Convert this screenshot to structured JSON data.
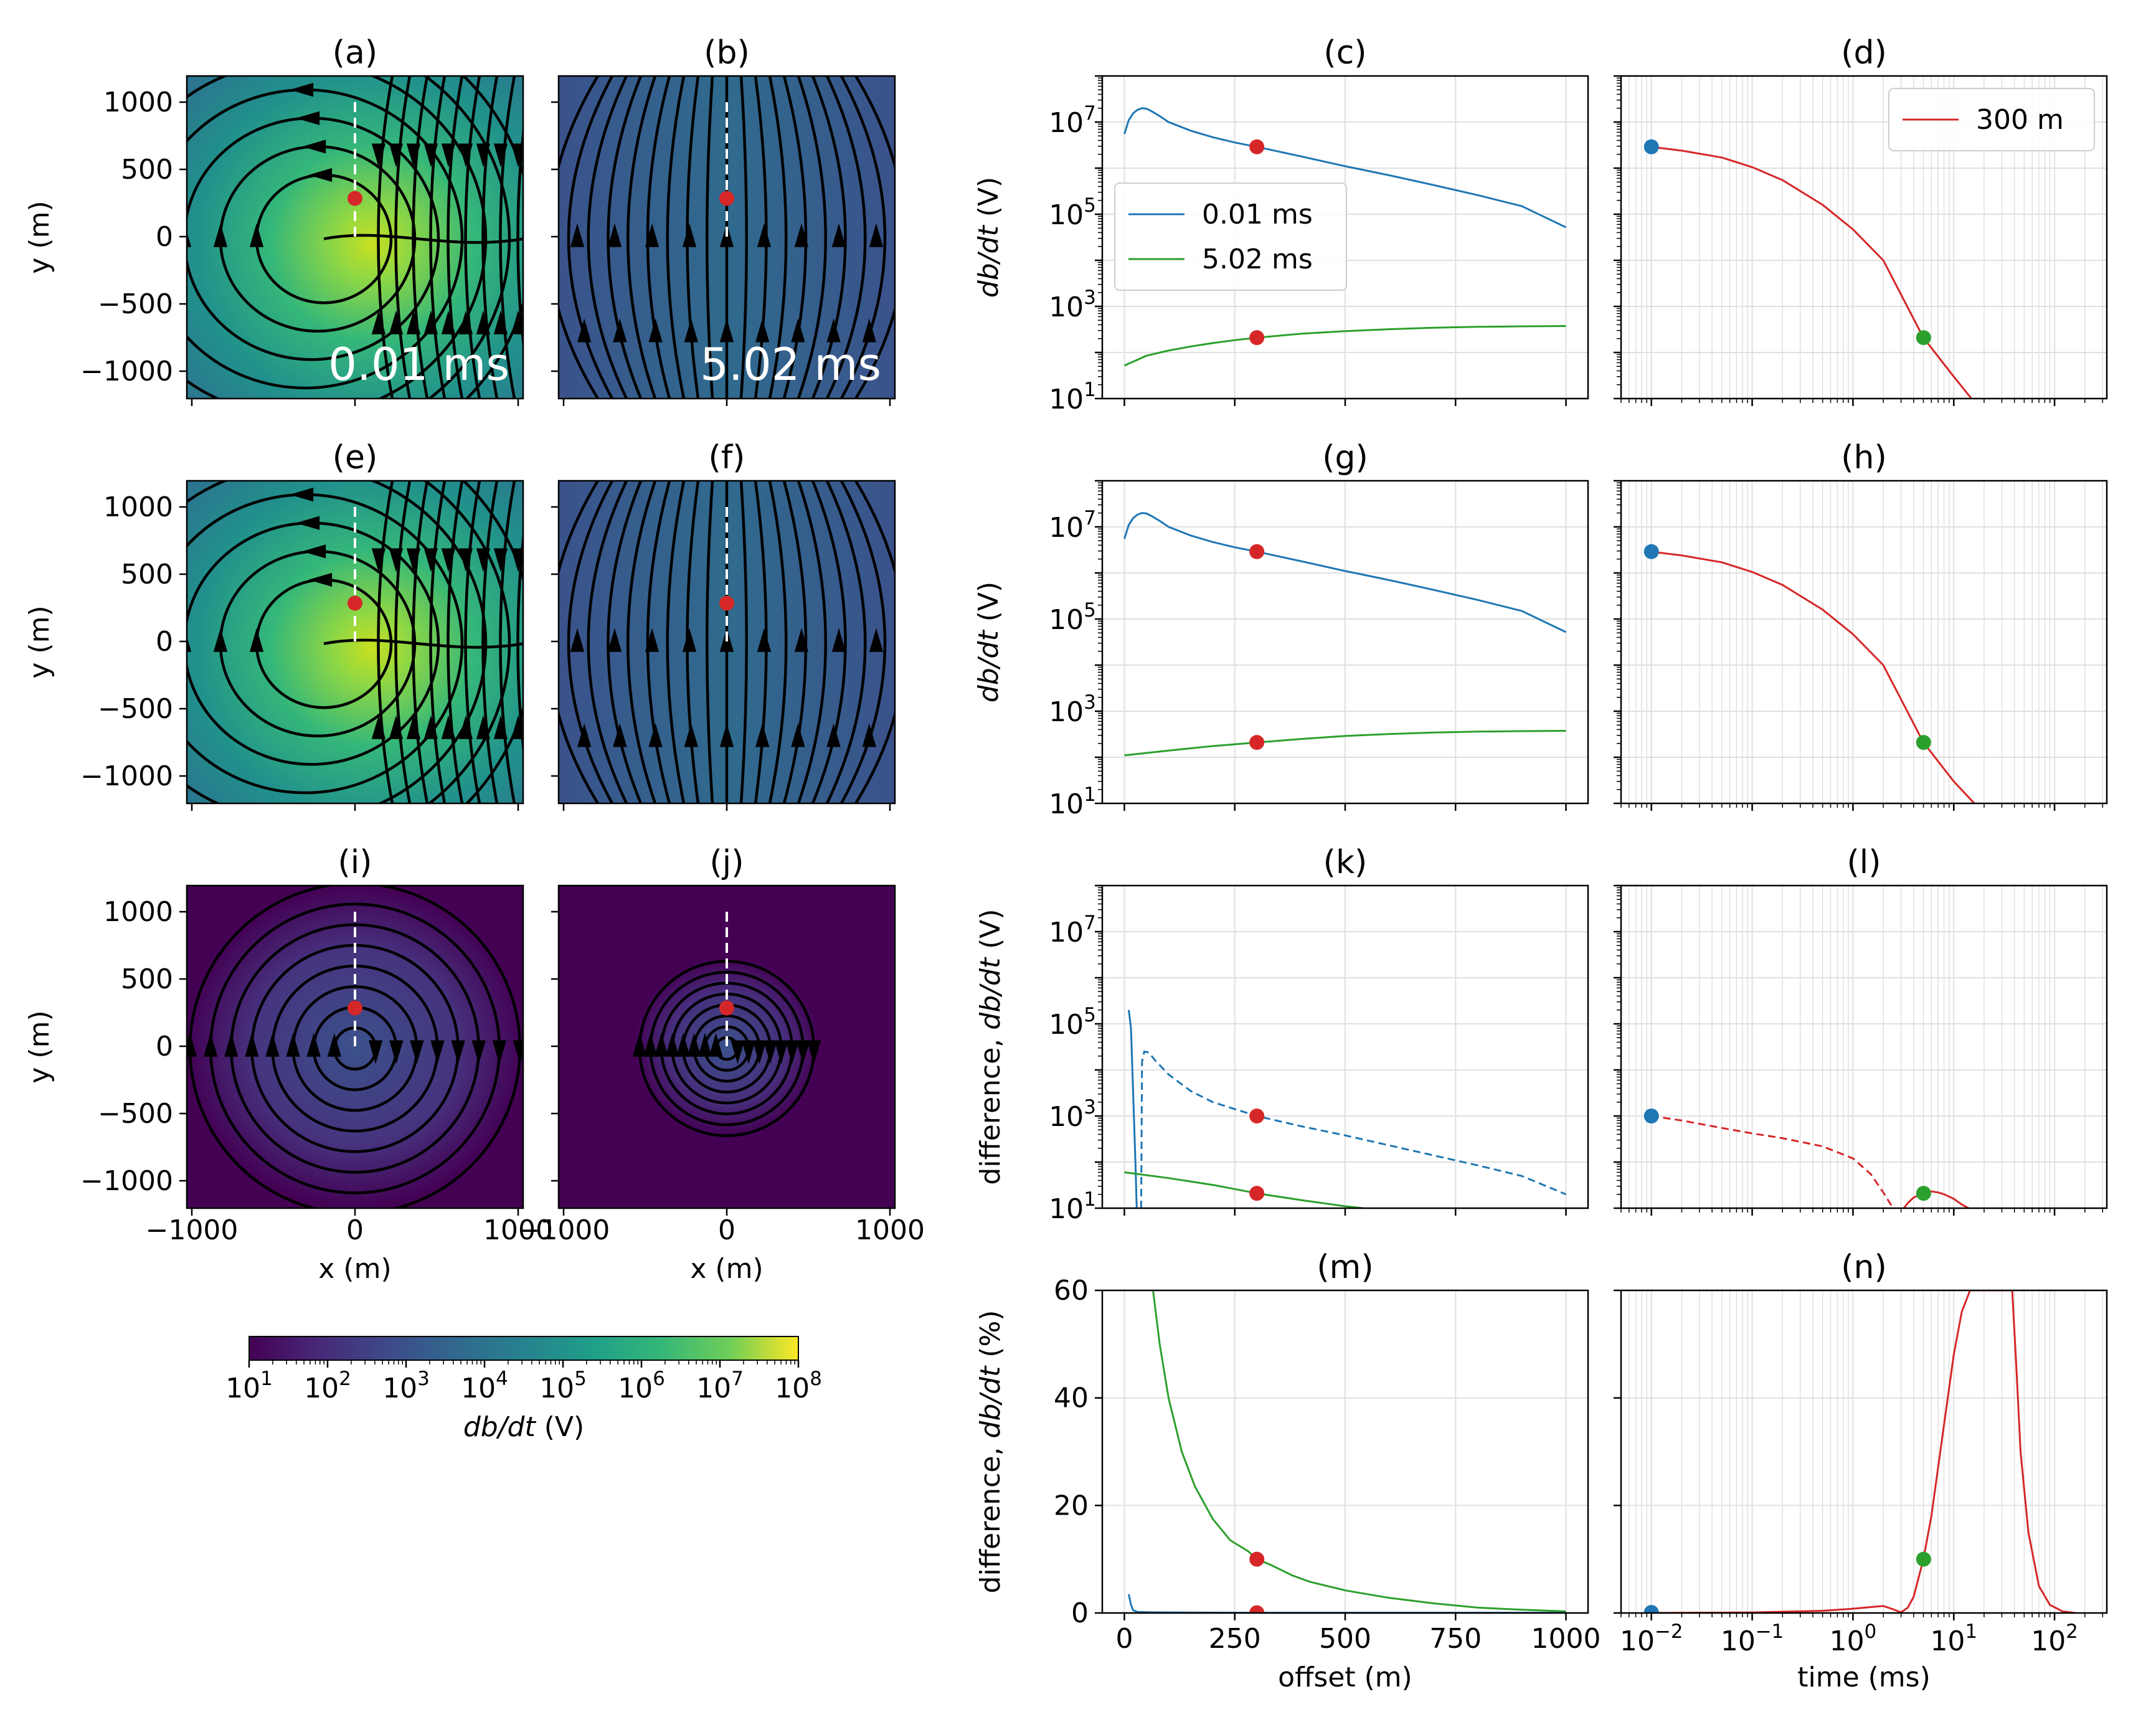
{
  "figure": {
    "panel_titles": {
      "a": "(a)",
      "b": "(b)",
      "c": "(c)",
      "d": "(d)",
      "e": "(e)",
      "f": "(f)",
      "g": "(g)",
      "h": "(h)",
      "i": "(i)",
      "j": "(j)",
      "k": "(k)",
      "l": "(l)",
      "m": "(m)",
      "n": "(n)"
    },
    "map_labels": {
      "ylabel": "y (m)",
      "xlabel": "x (m)",
      "time_a": "0.01 ms",
      "time_b": "5.02 ms"
    },
    "map_ticks": {
      "x": [
        "−1000",
        "0",
        "1000"
      ],
      "y": [
        "1000",
        "500",
        "0",
        "−500",
        "−1000"
      ]
    },
    "colorbar": {
      "label_italic": "db/dt",
      "label_unit": " (V)",
      "ticks_base": "10",
      "ticks_exp": [
        "1",
        "2",
        "3",
        "4",
        "5",
        "6",
        "7",
        "8"
      ],
      "colormap": "viridis"
    },
    "colors": {
      "blue": "#1f77b4",
      "green": "#2ca02c",
      "red": "#d62728",
      "grid": "#e0e0e0"
    }
  },
  "chart_data": [
    {
      "panel": "c",
      "type": "line",
      "xlabel": "",
      "ylabel_italic": "db/dt",
      "ylabel_unit": " (V)",
      "xlim": [
        -50,
        1050
      ],
      "ylim": [
        10,
        100000000
      ],
      "yscale": "log",
      "yticks": [
        "1",
        "3",
        "5",
        "7"
      ],
      "legend": {
        "position": "center-left",
        "entries": [
          "0.01 ms",
          "5.02 ms"
        ]
      },
      "series": [
        {
          "name": "0.01 ms",
          "color": "blue",
          "x": [
            0,
            10,
            20,
            30,
            40,
            50,
            60,
            80,
            100,
            150,
            200,
            250,
            300,
            400,
            500,
            600,
            700,
            800,
            900,
            1000
          ],
          "y": [
            5500000,
            11000000,
            15500000,
            18500000,
            20000000,
            19500000,
            17500000,
            13500000,
            10000000,
            6500000,
            4700000,
            3600000,
            2900000,
            1800000,
            1100000,
            700000,
            430000,
            260000,
            150000,
            52000
          ]
        },
        {
          "name": "5.02 ms",
          "color": "green",
          "x": [
            0,
            50,
            100,
            150,
            200,
            250,
            300,
            400,
            500,
            600,
            700,
            800,
            900,
            1000
          ],
          "y": [
            52,
            85,
            110,
            135,
            160,
            185,
            210,
            255,
            290,
            320,
            345,
            360,
            370,
            375
          ]
        }
      ],
      "markers": [
        {
          "x": 300,
          "y": 2900000,
          "color": "red"
        },
        {
          "x": 300,
          "y": 210,
          "color": "red"
        }
      ]
    },
    {
      "panel": "d",
      "type": "line",
      "xscale": "log",
      "yscale": "log",
      "xlim": [
        0.005,
        330
      ],
      "ylim": [
        10,
        100000000
      ],
      "legend": {
        "position": "top-right",
        "entries": [
          "300 m"
        ]
      },
      "series": [
        {
          "name": "300 m",
          "color": "red",
          "x": [
            0.01,
            0.02,
            0.05,
            0.1,
            0.2,
            0.5,
            1,
            2,
            5,
            10,
            15
          ],
          "y": [
            2900000,
            2400000,
            1700000,
            1050000,
            550000,
            160000,
            47000,
            10000,
            210,
            30,
            10
          ]
        }
      ],
      "markers": [
        {
          "x": 0.01,
          "y": 2900000,
          "color": "blue"
        },
        {
          "x": 5.02,
          "y": 210,
          "color": "green"
        }
      ]
    },
    {
      "panel": "g",
      "type": "line",
      "xlabel": "",
      "ylabel_italic": "db/dt",
      "ylabel_unit": " (V)",
      "xlim": [
        -50,
        1050
      ],
      "ylim": [
        10,
        100000000
      ],
      "yscale": "log",
      "yticks": [
        "1",
        "3",
        "5",
        "7"
      ],
      "series": [
        {
          "color": "blue",
          "x": [
            0,
            10,
            20,
            30,
            40,
            50,
            60,
            80,
            100,
            150,
            200,
            250,
            300,
            400,
            500,
            600,
            700,
            800,
            900,
            1000
          ],
          "y": [
            5500000,
            11000000,
            15500000,
            18500000,
            20000000,
            19500000,
            17500000,
            13500000,
            10000000,
            6500000,
            4700000,
            3600000,
            2900000,
            1800000,
            1100000,
            700000,
            430000,
            260000,
            150000,
            52000
          ]
        },
        {
          "color": "green",
          "x": [
            0,
            100,
            200,
            300,
            400,
            500,
            600,
            700,
            800,
            900,
            1000
          ],
          "y": [
            110,
            140,
            175,
            210,
            250,
            290,
            320,
            345,
            360,
            370,
            375
          ]
        }
      ],
      "markers": [
        {
          "x": 300,
          "y": 2900000,
          "color": "red"
        },
        {
          "x": 300,
          "y": 210,
          "color": "red"
        }
      ]
    },
    {
      "panel": "h",
      "type": "line",
      "xscale": "log",
      "yscale": "log",
      "xlim": [
        0.005,
        330
      ],
      "ylim": [
        10,
        100000000
      ],
      "series": [
        {
          "color": "red",
          "x": [
            0.01,
            0.02,
            0.05,
            0.1,
            0.2,
            0.5,
            1,
            2,
            5,
            10,
            16
          ],
          "y": [
            2900000,
            2400000,
            1700000,
            1050000,
            550000,
            160000,
            47000,
            10000,
            210,
            30,
            10
          ]
        }
      ],
      "markers": [
        {
          "x": 0.01,
          "y": 2900000,
          "color": "blue"
        },
        {
          "x": 5.02,
          "y": 210,
          "color": "green"
        }
      ]
    },
    {
      "panel": "k",
      "type": "line",
      "ylabel_prefix": "difference, ",
      "ylabel_italic": "db/dt",
      "ylabel_unit": " (V)",
      "xlim": [
        -50,
        1050
      ],
      "ylim": [
        10,
        100000000
      ],
      "yscale": "log",
      "yticks": [
        "1",
        "3",
        "5",
        "7"
      ],
      "series": [
        {
          "color": "blue",
          "dashed": false,
          "x": [
            10,
            15,
            20,
            25,
            28
          ],
          "y": [
            200000,
            80000,
            3000,
            100,
            10
          ]
        },
        {
          "color": "blue",
          "dashed": true,
          "x": [
            38,
            40,
            45,
            55,
            70,
            100,
            150,
            200,
            300,
            400,
            500,
            600,
            700,
            800,
            900,
            1000
          ],
          "y": [
            10,
            15000,
            25000,
            24000,
            16000,
            8000,
            3500,
            2000,
            1000,
            600,
            380,
            230,
            140,
            85,
            50,
            20
          ]
        },
        {
          "color": "green",
          "dashed": false,
          "x": [
            0,
            50,
            100,
            150,
            200,
            250,
            300,
            400,
            500,
            540
          ],
          "y": [
            60,
            52,
            45,
            38,
            32,
            26,
            21,
            15,
            11,
            10
          ]
        }
      ],
      "markers": [
        {
          "x": 300,
          "y": 1000,
          "color": "red"
        },
        {
          "x": 300,
          "y": 21,
          "color": "red"
        }
      ]
    },
    {
      "panel": "l",
      "type": "line",
      "xscale": "log",
      "yscale": "log",
      "xlim": [
        0.005,
        330
      ],
      "ylim": [
        10,
        100000000
      ],
      "series": [
        {
          "color": "red",
          "dashed": true,
          "x": [
            0.01,
            0.02,
            0.05,
            0.1,
            0.2,
            0.5,
            1,
            1.5,
            2,
            2.5
          ],
          "y": [
            1000,
            800,
            550,
            420,
            330,
            220,
            120,
            55,
            22,
            10
          ]
        },
        {
          "color": "red",
          "dashed": false,
          "x": [
            3.2,
            3.5,
            4,
            5,
            6,
            7,
            8,
            10,
            12,
            14
          ],
          "y": [
            10,
            13,
            17,
            21,
            23,
            22,
            20,
            16,
            12,
            10
          ]
        }
      ],
      "markers": [
        {
          "x": 0.01,
          "y": 1000,
          "color": "blue"
        },
        {
          "x": 5.02,
          "y": 21,
          "color": "green"
        }
      ]
    },
    {
      "panel": "m",
      "type": "line",
      "xlabel": "offset (m)",
      "ylabel_prefix": "difference, ",
      "ylabel_italic": "db/dt",
      "ylabel_unit": " (%)",
      "xlim": [
        -50,
        1050
      ],
      "ylim": [
        0,
        60
      ],
      "xticks": [
        0,
        250,
        500,
        750,
        1000
      ],
      "yticks": [
        0,
        20,
        40,
        60
      ],
      "series": [
        {
          "color": "green",
          "x": [
            65,
            80,
            100,
            130,
            160,
            200,
            240,
            280,
            300,
            330,
            380,
            420,
            500,
            600,
            700,
            800,
            900,
            1000
          ],
          "y": [
            60,
            50,
            40,
            30,
            23.5,
            17.5,
            13.5,
            11.5,
            10,
            9,
            7,
            5.8,
            4.2,
            2.8,
            1.8,
            1,
            0.6,
            0.3
          ]
        },
        {
          "color": "blue",
          "x": [
            10,
            15,
            20,
            30,
            50,
            100,
            300,
            1000
          ],
          "y": [
            3.5,
            1.5,
            0.5,
            0.2,
            0.15,
            0.1,
            0.05,
            0.05
          ]
        }
      ],
      "markers": [
        {
          "x": 300,
          "y": 10,
          "color": "red"
        },
        {
          "x": 300,
          "y": 0.05,
          "color": "red"
        }
      ]
    },
    {
      "panel": "n",
      "type": "line",
      "xlabel": "time (ms)",
      "xscale": "log",
      "xlim": [
        0.005,
        330
      ],
      "ylim": [
        0,
        60
      ],
      "xticks_exp": [
        "−2",
        "−1",
        "0",
        "1",
        "2"
      ],
      "series": [
        {
          "color": "red",
          "x": [
            0.01,
            0.1,
            0.5,
            1,
            1.5,
            2,
            2.5,
            3,
            3.5,
            4,
            5,
            6,
            8,
            10,
            12,
            14.5,
            38,
            42,
            46,
            55,
            70,
            90,
            120,
            160
          ],
          "y": [
            0,
            0.1,
            0.4,
            0.8,
            1.1,
            1.3,
            0.7,
            0.1,
            1,
            3,
            10,
            18,
            35,
            48,
            56,
            60,
            60,
            45,
            30,
            15,
            5,
            1.5,
            0.3,
            0
          ]
        }
      ],
      "markers": [
        {
          "x": 0.01,
          "y": 0.1,
          "color": "blue"
        },
        {
          "x": 5.02,
          "y": 10,
          "color": "green"
        }
      ]
    }
  ]
}
